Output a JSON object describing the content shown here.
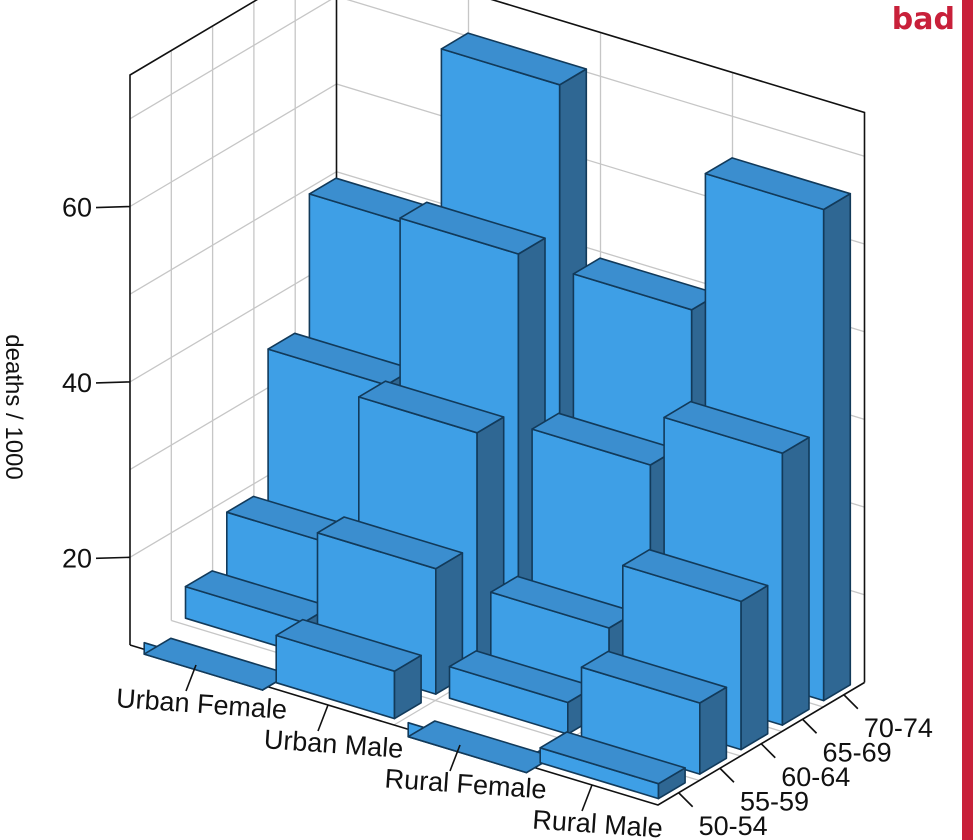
{
  "badge": "bad",
  "colors": {
    "bar_front": "#3e9fe6",
    "bar_top": "#3b8ecf",
    "bar_side": "#2f6793",
    "bar_stroke": "#123a5a",
    "accent": "#c8203a"
  },
  "chart_data": {
    "type": "bar",
    "title": "",
    "zlabel": "deaths / 1000",
    "x_categories": [
      "Urban Female",
      "Urban Male",
      "Rural Female",
      "Rural Male"
    ],
    "y_categories": [
      "50-54",
      "55-59",
      "60-64",
      "65-69",
      "70-74"
    ],
    "z_ticks": [
      20,
      40,
      60
    ],
    "zlim": [
      10,
      75
    ],
    "grid": true,
    "series": [
      {
        "name": "50-54",
        "values": [
          8.7,
          15.4,
          8.4,
          11.7
        ]
      },
      {
        "name": "55-59",
        "values": [
          13.6,
          24.3,
          13.6,
          18.1
        ]
      },
      {
        "name": "60-64",
        "values": [
          19.3,
          37.0,
          19.3,
          26.9
        ]
      },
      {
        "name": "65-69",
        "values": [
          35.1,
          54.6,
          35.1,
          41.0
        ]
      },
      {
        "name": "70-74",
        "values": [
          50.0,
          71.1,
          50.0,
          66.0
        ]
      }
    ]
  }
}
